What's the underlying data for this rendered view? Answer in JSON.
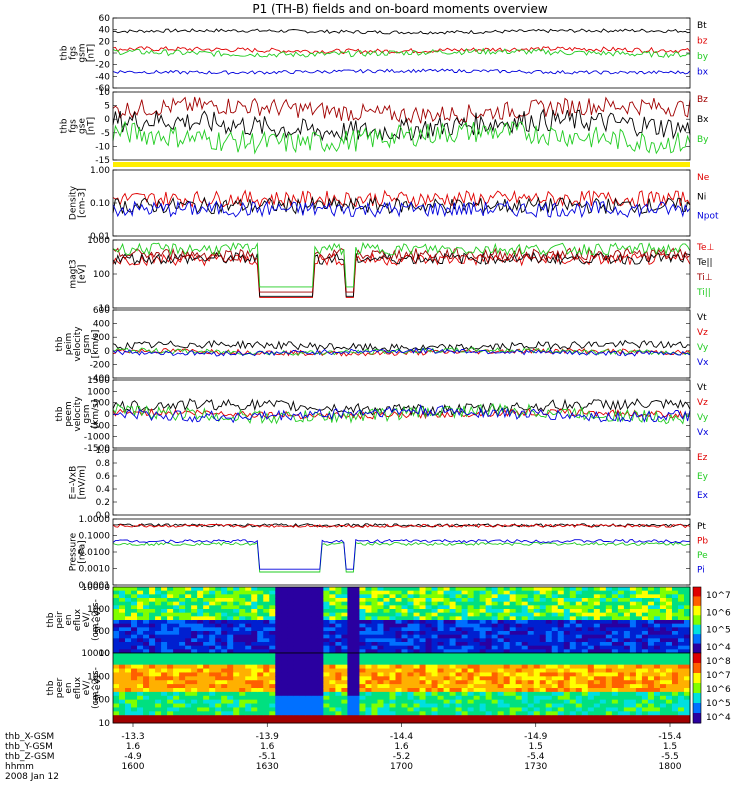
{
  "title": "P1 (TH-B) fields and on-board moments overview",
  "date_label": "2008 Jan 12",
  "colors": {
    "black": "#000000",
    "red": "#e00000",
    "darkred": "#a00000",
    "green": "#22cc22",
    "blue": "#0000dd",
    "yellow": "#ffee00"
  },
  "chart_data": [
    {
      "type": "line",
      "id": "fgs_gsm",
      "ylabel": [
        "thb",
        "fgs",
        "gsm",
        "[nT]"
      ],
      "ylim": [
        -60,
        60
      ],
      "yticks": [
        "60",
        "40",
        "20",
        "0",
        "-20",
        "-40",
        "-60"
      ],
      "series": [
        {
          "name": "Bt",
          "color": "black",
          "base": 37,
          "amp": 3
        },
        {
          "name": "bz",
          "color": "red",
          "base": 5,
          "amp": 4
        },
        {
          "name": "by",
          "color": "green",
          "base": 0,
          "amp": 5
        },
        {
          "name": "bx",
          "color": "blue",
          "base": -32,
          "amp": 3
        }
      ]
    },
    {
      "type": "line",
      "id": "fgs_gse",
      "ylabel": [
        "thb",
        "fgs",
        "gse",
        "[nT]"
      ],
      "ylim": [
        -18,
        12
      ],
      "yticks": [
        "10",
        "5",
        "0",
        "-5",
        "-10",
        "-15"
      ],
      "series": [
        {
          "name": "Bz",
          "color": "darkred",
          "base": 4,
          "amp": 4
        },
        {
          "name": "Bx",
          "color": "black",
          "base": -3,
          "amp": 5
        },
        {
          "name": "By",
          "color": "green",
          "base": -8,
          "amp": 5
        }
      ]
    },
    {
      "type": "line",
      "id": "density",
      "ylabel": [
        "Density",
        "[cm-3]"
      ],
      "log": true,
      "ylim": [
        0.01,
        1.2
      ],
      "yticks": [
        "1.00",
        "0.10",
        "0.01"
      ],
      "series": [
        {
          "name": "Ne",
          "color": "red",
          "base": 0.15,
          "amp": 0.3
        },
        {
          "name": "Ni",
          "color": "black",
          "base": 0.09,
          "amp": 0.05
        },
        {
          "name": "Npot",
          "color": "blue",
          "base": 0.07,
          "amp": 0.03
        }
      ]
    },
    {
      "type": "line",
      "id": "temp",
      "ylabel": [
        "magt3",
        "[eV]"
      ],
      "log": true,
      "ylim": [
        8,
        6000
      ],
      "yticks": [
        "1000",
        "100",
        "10"
      ],
      "series": [
        {
          "name": "Te⊥",
          "color": "red",
          "base": 900,
          "amp": 400
        },
        {
          "name": "Te||",
          "color": "black",
          "base": 1000,
          "amp": 400
        },
        {
          "name": "Ti⊥",
          "color": "darkred",
          "base": 1500,
          "amp": 500
        },
        {
          "name": "Ti||",
          "color": "green",
          "base": 2500,
          "amp": 800
        }
      ]
    },
    {
      "type": "line",
      "id": "vi",
      "ylabel": [
        "thb",
        "peim",
        "velocity",
        "gsm",
        "[km/s]"
      ],
      "ylim": [
        -400,
        650
      ],
      "yticks": [
        "600",
        "400",
        "200",
        "0",
        "-200",
        "-400"
      ],
      "series": [
        {
          "name": "Vt",
          "color": "black",
          "base": 90,
          "amp": 60
        },
        {
          "name": "Vz",
          "color": "red",
          "base": 0,
          "amp": 40
        },
        {
          "name": "Vy",
          "color": "green",
          "base": 10,
          "amp": 40
        },
        {
          "name": "Vx",
          "color": "blue",
          "base": 0,
          "amp": 40
        }
      ]
    },
    {
      "type": "line",
      "id": "ve",
      "ylabel": [
        "thb",
        "peem",
        "velocity",
        "gsm",
        "[km/s]"
      ],
      "ylim": [
        -1500,
        1500
      ],
      "yticks": [
        "1500",
        "1000",
        "500",
        "0",
        "-500",
        "-1000",
        "-1500"
      ],
      "series": [
        {
          "name": "Vt",
          "color": "black",
          "base": 300,
          "amp": 250
        },
        {
          "name": "Vz",
          "color": "red",
          "base": 0,
          "amp": 150
        },
        {
          "name": "Vy",
          "color": "green",
          "base": 0,
          "amp": 300
        },
        {
          "name": "Vx",
          "color": "blue",
          "base": 0,
          "amp": 250
        }
      ]
    },
    {
      "type": "line",
      "id": "efield",
      "ylabel": [
        "E=-VxB",
        "[mV/m]"
      ],
      "ylim": [
        0,
        1
      ],
      "yticks": [
        "1.0",
        "0.8",
        "0.6",
        "0.4",
        "0.2",
        "0.0"
      ],
      "series": [
        {
          "name": "Ez",
          "color": "red"
        },
        {
          "name": "Ey",
          "color": "green"
        },
        {
          "name": "Ex",
          "color": "blue"
        }
      ]
    },
    {
      "type": "line",
      "id": "pressure",
      "ylabel": [
        "Pressure",
        "[nPa]"
      ],
      "log": true,
      "ylim": [
        0.0001,
        1.5
      ],
      "yticks": [
        "1.0000",
        "0.1000",
        "0.0100",
        "0.0010",
        "0.0001"
      ],
      "series": [
        {
          "name": "Pt",
          "color": "black",
          "base": 0.6
        },
        {
          "name": "Pb",
          "color": "red",
          "base": 0.55
        },
        {
          "name": "Pe",
          "color": "green",
          "base": 0.04
        },
        {
          "name": "Pi",
          "color": "blue",
          "base": 0.06
        }
      ]
    },
    {
      "type": "heatmap",
      "id": "peir",
      "ylabel": [
        "thb",
        "peir",
        "en",
        "eflux",
        "eV/",
        "(cm^2-s-",
        "sr-eV)"
      ],
      "log": true,
      "ylim": [
        10,
        20000
      ],
      "yticks": [
        "10000",
        "1000",
        "100",
        "10"
      ],
      "zticks": [
        "10^7",
        "10^6",
        "10^5",
        "10^4"
      ]
    },
    {
      "type": "heatmap",
      "id": "peer",
      "ylabel": [
        "thb",
        "peer",
        "en",
        "eflux",
        "eV/",
        "(cm^2-s-",
        "sr-eV)"
      ],
      "log": true,
      "ylim": [
        8,
        20000
      ],
      "yticks": [
        "10000",
        "1000",
        "100",
        "10"
      ],
      "zticks": [
        "10^8",
        "10^7",
        "10^6",
        "10^5",
        "10^4"
      ]
    }
  ],
  "orbit": {
    "labels": [
      "thb_X-GSM",
      "thb_Y-GSM",
      "thb_Z-GSM",
      "hhmm"
    ],
    "columns": [
      {
        "x": "-13.3",
        "y": "1.6",
        "z": "-4.9",
        "t": "1600"
      },
      {
        "x": "-13.9",
        "y": "1.6",
        "z": "-5.1",
        "t": "1630"
      },
      {
        "x": "-14.4",
        "y": "1.6",
        "z": "-5.2",
        "t": "1700"
      },
      {
        "x": "-14.9",
        "y": "1.5",
        "z": "-5.4",
        "t": "1730"
      },
      {
        "x": "-15.4",
        "y": "1.5",
        "z": "-5.5",
        "t": "1800"
      }
    ]
  }
}
